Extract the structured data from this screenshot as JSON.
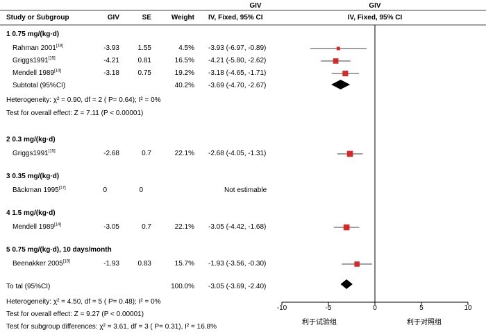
{
  "header": {
    "col_study": "Study or Subgroup",
    "col_giv": "GIV",
    "col_se": "SE",
    "col_weight": "Weight",
    "col_ci_top": "GIV",
    "col_ci_bottom": "IV, Fixed, 95% CI",
    "plot_top": "GIV",
    "plot_bottom": "IV, Fixed, 95% CI"
  },
  "groups": [
    {
      "label": "1  0.75 mg/(kg·d)"
    },
    {
      "label": "2  0.3 mg/(kg·d)"
    },
    {
      "label": "3  0.35 mg/(kg·d)"
    },
    {
      "label": "4  1.5 mg/(kg·d)"
    },
    {
      "label": "5  0.75 mg/(kg·d), 10 days/month"
    }
  ],
  "studies": [
    {
      "name": "Rahman 2001",
      "ref": "[18]",
      "giv": "-3.93",
      "se": "1.55",
      "weight": "4.5%",
      "ci": "-3.93 (-6.97, -0.89)"
    },
    {
      "name": "Griggs1991",
      "ref": "[15]",
      "giv": "-4.21",
      "se": "0.81",
      "weight": "16.5%",
      "ci": "-4.21 (-5.80, -2.62)"
    },
    {
      "name": "Mendell 1989",
      "ref": "[14]",
      "giv": "-3.18",
      "se": "0.75",
      "weight": "19.2%",
      "ci": "-3.18 (-4.65, -1.71)"
    },
    {
      "name": "Griggs1991",
      "ref": "[15]",
      "giv": "-2.68",
      "se": "0.7",
      "weight": "22.1%",
      "ci": "-2.68 (-4.05, -1.31)"
    },
    {
      "name": "Bäckman 1995",
      "ref": "[17]",
      "giv": "0",
      "se": "0",
      "weight": "",
      "ci": "Not estimable"
    },
    {
      "name": "Mendell 1989",
      "ref": "[14]",
      "giv": "-3.05",
      "se": "0.7",
      "weight": "22.1%",
      "ci": "-3.05 (-4.42, -1.68)"
    },
    {
      "name": "Beenakker 2005",
      "ref": "[19]",
      "giv": "-1.93",
      "se": "0.83",
      "weight": "15.7%",
      "ci": "-1.93 (-3.56, -0.30)"
    }
  ],
  "subtotal": {
    "label": "Subtotal (95%CI)",
    "weight": "40.2%",
    "ci": "-3.69 (-4.70, -2.67)"
  },
  "group1_het": "Heterogeneity: χ² = 0.90, df = 2 ( P= 0.64); I² = 0%",
  "group1_test": "Test for overall effect: Z = 7.11 (P < 0.00001)",
  "total": {
    "label": "To tal (95%CI)",
    "weight": "100.0%",
    "ci": "-3.05 (-3.69, -2.40)"
  },
  "footer": {
    "het": "Heterogeneity: χ² = 4.50, df = 5 ( P= 0.48); I² = 0%",
    "overall": "Test for overall effect: Z = 9.27 (P < 0.00001)",
    "subgroup": "Test for subgroup differences: χ² = 3.61, df = 3 ( P= 0.31), I² = 16.8%"
  },
  "axis": {
    "ticks": [
      "-10",
      "-5",
      "0",
      "5",
      "10"
    ],
    "favours_left": "利于试验组",
    "favours_right": "利于对照组"
  },
  "colors": {
    "square": "#d42a2a",
    "diamond": "#000000",
    "line": "#000000"
  },
  "chart_data": {
    "type": "forest",
    "xlim": [
      -10,
      10
    ],
    "xticks": [
      -10,
      -5,
      0,
      5,
      10
    ],
    "studies": [
      {
        "name": "Rahman 2001",
        "est": -3.93,
        "lo": -6.97,
        "hi": -0.89,
        "weight": 4.5
      },
      {
        "name": "Griggs1991",
        "est": -4.21,
        "lo": -5.8,
        "hi": -2.62,
        "weight": 16.5
      },
      {
        "name": "Mendell 1989",
        "est": -3.18,
        "lo": -4.65,
        "hi": -1.71,
        "weight": 19.2
      },
      {
        "name": "Griggs1991",
        "est": -2.68,
        "lo": -4.05,
        "hi": -1.31,
        "weight": 22.1
      },
      {
        "name": "Mendell 1989",
        "est": -3.05,
        "lo": -4.42,
        "hi": -1.68,
        "weight": 22.1
      },
      {
        "name": "Beenakker 2005",
        "est": -1.93,
        "lo": -3.56,
        "hi": -0.3,
        "weight": 15.7
      }
    ],
    "diamonds": [
      {
        "name": "Subtotal (95%CI)",
        "est": -3.69,
        "lo": -4.7,
        "hi": -2.67
      },
      {
        "name": "Total (95%CI)",
        "est": -3.05,
        "lo": -3.69,
        "hi": -2.4
      }
    ]
  }
}
